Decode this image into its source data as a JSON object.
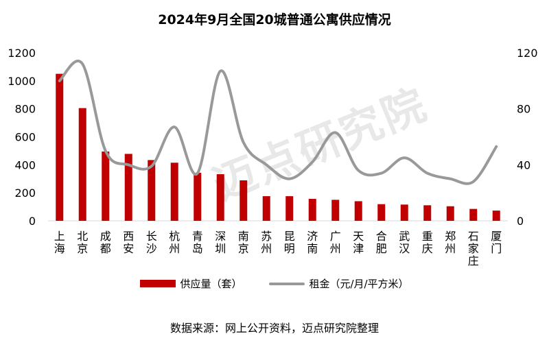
{
  "chart_data": {
    "type": "bar+line",
    "title": "2024年9月全国20城普通公寓供应情况",
    "categories": [
      "上海",
      "北京",
      "成都",
      "西安",
      "长沙",
      "杭州",
      "青岛",
      "深圳",
      "南京",
      "苏州",
      "昆明",
      "济南",
      "广州",
      "天津",
      "合肥",
      "武汉",
      "重庆",
      "郑州",
      "石家庄",
      "厦门"
    ],
    "series": [
      {
        "name": "供应量（套）",
        "type": "bar",
        "axis": "left",
        "color": "#c00000",
        "values": [
          1050,
          805,
          495,
          478,
          434,
          415,
          343,
          333,
          289,
          176,
          176,
          157,
          150,
          140,
          119,
          116,
          111,
          104,
          85,
          73
        ]
      },
      {
        "name": "租金（元/月/平方米）",
        "type": "line",
        "axis": "right",
        "color": "#999999",
        "values": [
          100,
          112,
          50,
          40,
          39,
          67,
          34,
          107,
          56,
          40,
          30,
          42,
          63,
          36,
          34,
          45,
          34,
          30,
          28,
          53
        ]
      }
    ],
    "left_axis": {
      "ylim": [
        0,
        1200
      ],
      "ticks": [
        "0",
        "200",
        "400",
        "600",
        "800",
        "1000",
        "1200"
      ]
    },
    "right_axis": {
      "ylim": [
        0,
        120
      ],
      "ticks": [
        "0",
        "40",
        "80",
        "120"
      ]
    },
    "legend_position": "bottom",
    "grid": false
  },
  "source": "数据来源：网上公开资料，迈点研究院整理",
  "watermark": "迈点研究院"
}
